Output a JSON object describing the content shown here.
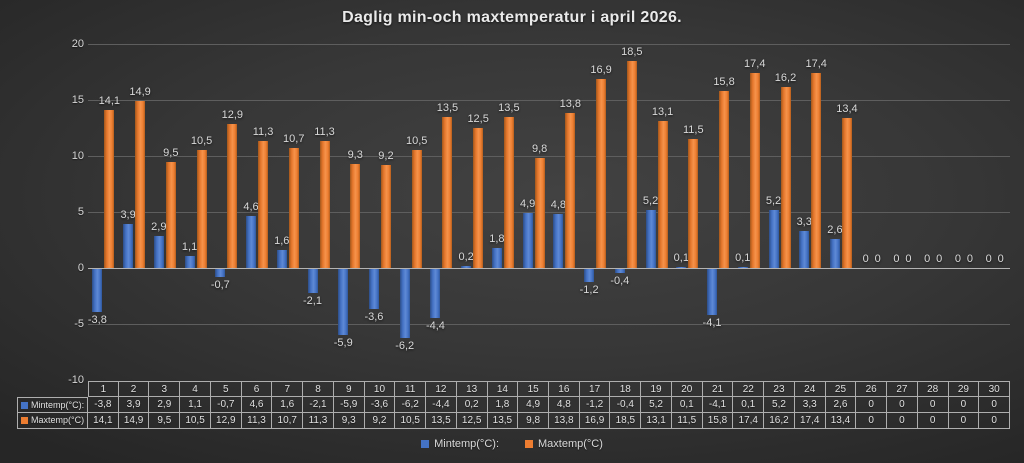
{
  "title": "Daglig min-och maxtemperatur i april 2026.",
  "colors": {
    "min_series": "#4472C4",
    "max_series": "#ED7D31",
    "background": "#333333",
    "gridline": "#5E5E5E",
    "zero_axis": "#B3B3B3",
    "text": "#D9D9D9",
    "table_border": "#AEAEAE"
  },
  "chart_data": {
    "type": "bar",
    "title": "Daglig min-och maxtemperatur i april 2026.",
    "categories": [
      1,
      2,
      3,
      4,
      5,
      6,
      7,
      8,
      9,
      10,
      11,
      12,
      13,
      14,
      15,
      16,
      17,
      18,
      19,
      20,
      21,
      22,
      23,
      24,
      25,
      26,
      27,
      28,
      29,
      30
    ],
    "series": [
      {
        "name": "Mintemp(°C):",
        "color": "#4472C4",
        "values": [
          -3.8,
          3.9,
          2.9,
          1.1,
          -0.7,
          4.6,
          1.6,
          -2.1,
          -5.9,
          -3.6,
          -6.2,
          -4.4,
          0.2,
          1.8,
          4.9,
          4.8,
          -1.2,
          -0.4,
          5.2,
          0.1,
          -4.1,
          0.1,
          5.2,
          3.3,
          2.6,
          0,
          0,
          0,
          0,
          0
        ]
      },
      {
        "name": "Maxtemp(°C)",
        "color": "#ED7D31",
        "values": [
          14.1,
          14.9,
          9.5,
          10.5,
          12.9,
          11.3,
          10.7,
          11.3,
          9.3,
          9.2,
          10.5,
          13.5,
          12.5,
          13.5,
          9.8,
          13.8,
          16.9,
          18.5,
          13.1,
          11.5,
          15.8,
          17.4,
          16.2,
          17.4,
          13.4,
          0,
          0,
          0,
          0,
          0
        ]
      }
    ],
    "ylim": [
      -10,
      20
    ],
    "yticks": [
      20,
      15,
      10,
      5,
      0,
      -5,
      -10
    ],
    "grid": true,
    "legend_position": "bottom",
    "data_labels": true,
    "data_table_shown": true,
    "decimal_separator": ","
  }
}
